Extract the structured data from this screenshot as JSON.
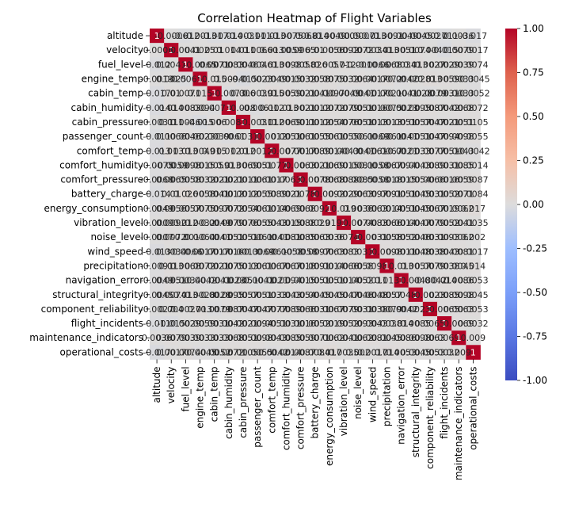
{
  "chart_data": {
    "type": "heatmap",
    "title": "Correlation Heatmap of Flight Variables",
    "variables": [
      "altitude",
      "velocity",
      "fuel_level",
      "engine_temp",
      "cabin_temp",
      "cabin_humidity",
      "cabin_pressure",
      "passenger_count",
      "comfort_temp",
      "comfort_humidity",
      "comfort_pressure",
      "battery_charge",
      "energy_consumption",
      "vibration_level",
      "noise_level",
      "wind_speed",
      "precipitation",
      "navigation_error",
      "structural_integrity",
      "component_reliability",
      "flight_incidents",
      "maintenance_indicators",
      "operational_costs"
    ],
    "colormap": "coolwarm",
    "vmin": -1.0,
    "vmax": 1.0,
    "colorbar_ticks": [
      "1.00",
      "0.75",
      "0.50",
      "0.25",
      "0.00",
      "-0.25",
      "-0.50",
      "-0.75",
      "-1.00"
    ],
    "annotations": [
      [
        "1",
        "-0.0006",
        "-0.012",
        "-0.0013",
        "-0.017",
        "-0.014",
        "-0.0031",
        "-0.011",
        "-0.013",
        "-0.0075",
        "-0.0068",
        "-0.014",
        "-0.0049",
        "-0.0009",
        "-0.0007",
        "-0.013",
        "-0.0091",
        "-0.0049",
        "-0.0045",
        "-0.0027",
        "-0.011",
        "0.0036",
        "-0.017"
      ],
      [
        "-0.0006",
        "1",
        "0.0041",
        "0.0025",
        "0.01",
        "0.014",
        "0.011",
        "0.0066",
        "0.013",
        "-0.0059",
        "0.0065",
        "0.01",
        "0.0056",
        "0.0092",
        "0.0072",
        "0.0034",
        "0.013",
        "0.0051",
        "0.0074",
        "0.004",
        "-0.015",
        "0.0079",
        "0.0017"
      ],
      [
        "-0.012",
        "0.0041",
        "1",
        "-0.0065",
        "0.0071",
        "0.0083",
        "0.0046",
        "0.0046",
        "0.013",
        "0.0098",
        "0.0058",
        "0.026",
        "0.0057",
        "0.012",
        "-0.001",
        "-0.0066",
        "0.0068",
        "0.0034",
        "0.013",
        "0.0027",
        "0.0029",
        "0.0039",
        "0.0074"
      ],
      [
        "-0.0013",
        "0.0025",
        "-0.0065",
        "1",
        "0.015",
        "0.0094",
        "-0.015",
        "0.0023",
        "0.0049",
        "0.0015",
        "0.0032",
        "0.0058",
        "0.0075",
        "0.0032",
        "0.0064",
        "0.0017",
        "0.0072",
        "-0.0042",
        "0.0028",
        "0.013",
        "0.0059",
        "0.0033",
        "-0.0045"
      ],
      [
        "-0.017",
        "0.01",
        "0.0071",
        "0.015",
        "1",
        "-0.0073",
        "0.006",
        "0.0039",
        "0.015",
        "0.0059",
        "0.0021",
        "0.0041",
        "0.0097",
        "-0.0049",
        "-0.0041",
        "0.0017",
        "0.0021",
        "-0.0041",
        "-0.0028",
        "-0.0079",
        "0.0031",
        "0.0033",
        "-0.0052"
      ],
      [
        "-0.014",
        "0.014",
        "0.0083",
        "0.0094",
        "-0.0073",
        "1",
        "0.008",
        "-0.0061",
        "0.012",
        "0.013",
        "0.0021",
        "0.0012",
        "0.0072",
        "0.0079",
        "0.0051",
        "0.0016",
        "0.0075",
        "-0.0023",
        "0.0095",
        "0.0087",
        "0.0042",
        "0.0068",
        "0.0072"
      ],
      [
        "-0.0031",
        "0.011",
        "0.0046",
        "-0.015",
        "0.006",
        "0.008",
        "1",
        "0.0031",
        "0.012",
        "0.0069",
        "0.0011",
        "0.0012",
        "0.0054",
        "0.0076",
        "0.0051",
        "0.0013",
        "0.0013",
        "0.0051",
        "0.0057",
        "0.0047",
        "0.0021",
        "0.0051",
        "0.0105"
      ],
      [
        "-0.011",
        "0.0066",
        "0.0046",
        "0.0023",
        "0.0039",
        "-0.0061",
        "0.0031",
        "1",
        "0.0012",
        "0.0051",
        "0.0061",
        "0.0055",
        "0.0061",
        "0.0055",
        "0.0061",
        "-0.0069",
        "0.0061",
        "-0.0041",
        "0.0051",
        "0.0047",
        "0.0094",
        "0.0098",
        "0.0055"
      ],
      [
        "-0.013",
        "0.013",
        "0.013",
        "0.0049",
        "0.015",
        "0.012",
        "0.012",
        "0.0012",
        "1",
        "0.0077",
        "0.0017",
        "0.0089",
        "0.0014",
        "0.0043",
        "-0.0041",
        "0.0061",
        "0.0067",
        "-0.0021",
        "0.0033",
        "0.0077",
        "0.0051",
        "0.0043",
        "-0.0042"
      ],
      [
        "-0.0075",
        "-0.0059",
        "0.0098",
        "0.0015",
        "0.0059",
        "0.013",
        "0.0069",
        "0.0051",
        "0.0077",
        "1",
        "0.0063",
        "0.0021",
        "0.0069",
        "0.0015",
        "0.0081",
        "-0.0058",
        "0.0067",
        "0.0094",
        "0.0043",
        "0.0089",
        "0.0031",
        "0.0085",
        "0.0014"
      ],
      [
        "-0.0068",
        "0.0065",
        "0.0058",
        "0.0032",
        "0.0021",
        "0.0021",
        "0.0011",
        "0.0061",
        "0.0017",
        "0.0063",
        "1",
        "0.0078",
        "0.0068",
        "0.0088",
        "0.0085",
        "-0.0058",
        "0.0018",
        "0.0015",
        "0.0054",
        "0.0066",
        "0.0016",
        "0.0059",
        "0.0087"
      ],
      [
        "-0.014",
        "0.01",
        "0.026",
        "0.0058",
        "0.0041",
        "0.0012",
        "0.0012",
        "0.0055",
        "0.0089",
        "0.0021",
        "0.0078",
        "1",
        "0.0092",
        "0.0029",
        "0.0063",
        "0.0097",
        "0.0091",
        "0.0051",
        "0.0045",
        "0.0031",
        "0.0052",
        "0.0071",
        "0.0084"
      ],
      [
        "-0.0049",
        "0.0056",
        "0.0057",
        "0.0075",
        "0.0097",
        "0.0072",
        "0.0054",
        "0.0061",
        "0.0014",
        "0.0069",
        "0.0068",
        "0.0092",
        "1",
        "0.019",
        "0.0036",
        "0.0063",
        "0.0014",
        "0.0051",
        "0.0045",
        "0.0067",
        "0.0019",
        "0.0062",
        "0.017"
      ],
      [
        "-0.0009",
        "0.0092",
        "0.012",
        "0.0032",
        "-0.0049",
        "0.0079",
        "0.0076",
        "0.0055",
        "0.0043",
        "0.0015",
        "0.0088",
        "0.0029",
        "0.019",
        "1",
        "0.0074",
        "0.0083",
        "0.0066",
        "0.0014",
        "0.0047",
        "0.0079",
        "0.0052",
        "0.0041",
        "0.0035"
      ],
      [
        "-0.0007",
        "0.0072",
        "-0.001",
        "0.0064",
        "-0.0041",
        "0.0051",
        "0.0051",
        "0.0061",
        "-0.0041",
        "0.0081",
        "0.0085",
        "0.0063",
        "0.0036",
        "0.0074",
        "1",
        "0.0031",
        "0.0058",
        "0.0052",
        "0.0046",
        "0.0031",
        "0.0093",
        "0.0062",
        "0.002"
      ],
      [
        "-0.013",
        "0.0034",
        "-0.0066",
        "0.0017",
        "0.0017",
        "0.0016",
        "0.0013",
        "-0.0069",
        "0.0061",
        "-0.0058",
        "-0.0058",
        "0.0097",
        "0.0063",
        "0.0083",
        "0.0031",
        "1",
        "0.0098",
        "0.0011",
        "0.0048",
        "0.0038",
        "0.0043",
        "0.0081",
        "0.0017"
      ],
      [
        "-0.0091",
        "0.013",
        "0.0068",
        "0.0072",
        "0.0021",
        "0.0075",
        "0.0013",
        "0.0061",
        "0.0067",
        "0.0067",
        "0.0018",
        "0.0091",
        "0.0014",
        "0.0066",
        "0.0058",
        "0.0098",
        "1",
        "0.013",
        "0.0057",
        "0.0079",
        "0.0038",
        "0.0045",
        "0.014"
      ],
      [
        "-0.0049",
        "0.0051",
        "0.0034",
        "-0.0042",
        "-0.0041",
        "-0.0023",
        "0.0051",
        "-0.0041",
        "-0.0021",
        "0.0094",
        "0.0015",
        "0.0051",
        "0.0051",
        "0.0014",
        "0.0052",
        "0.0011",
        "0.013",
        "1",
        "0.0048",
        "-0.0042",
        "0.014",
        "0.0086",
        "0.0053"
      ],
      [
        "-0.0045",
        "0.0074",
        "0.013",
        "0.0028",
        "-0.0028",
        "0.0095",
        "0.0057",
        "0.0051",
        "0.0033",
        "0.0043",
        "0.0054",
        "0.0045",
        "0.0045",
        "0.0047",
        "0.0046",
        "0.0048",
        "0.0057",
        "0.0048",
        "1",
        "0.0023",
        "0.0085",
        "0.0098",
        "0.0045"
      ],
      [
        "-0.0027",
        "0.004",
        "0.0027",
        "0.013",
        "-0.0079",
        "0.0087",
        "0.0047",
        "0.0047",
        "0.0077",
        "0.0089",
        "0.0066",
        "0.0031",
        "0.0067",
        "0.0079",
        "0.0031",
        "0.0038",
        "0.0079",
        "-0.0042",
        "0.0023",
        "1",
        "0.0065",
        "0.0063",
        "0.0053"
      ],
      [
        "-0.011",
        "-0.015",
        "0.0029",
        "0.0059",
        "0.0031",
        "0.0042",
        "0.0021",
        "0.0094",
        "0.0051",
        "0.0031",
        "0.0016",
        "0.0052",
        "0.0019",
        "0.0052",
        "0.0093",
        "0.0043",
        "0.0038",
        "0.014",
        "0.0085",
        "0.0065",
        "1",
        "0.0069",
        "0.0032"
      ],
      [
        "0.0036",
        "0.0079",
        "0.0039",
        "0.0033",
        "0.0033",
        "0.0068",
        "0.0051",
        "0.0098",
        "0.0043",
        "0.0085",
        "0.0059",
        "0.0071",
        "0.0062",
        "0.0041",
        "0.0062",
        "0.0081",
        "0.0045",
        "0.0086",
        "0.0098",
        "0.0063",
        "0.0069",
        "1",
        "0.009"
      ],
      [
        "-0.017",
        "0.0017",
        "0.0074",
        "-0.0045",
        "-0.0052",
        "0.0072",
        "0.0105",
        "0.0055",
        "-0.0042",
        "0.0014",
        "0.0087",
        "0.0084",
        "0.017",
        "0.0035",
        "0.002",
        "0.0017",
        "0.014",
        "0.0053",
        "0.0045",
        "0.0053",
        "0.0032",
        "0.009",
        "1"
      ]
    ]
  }
}
